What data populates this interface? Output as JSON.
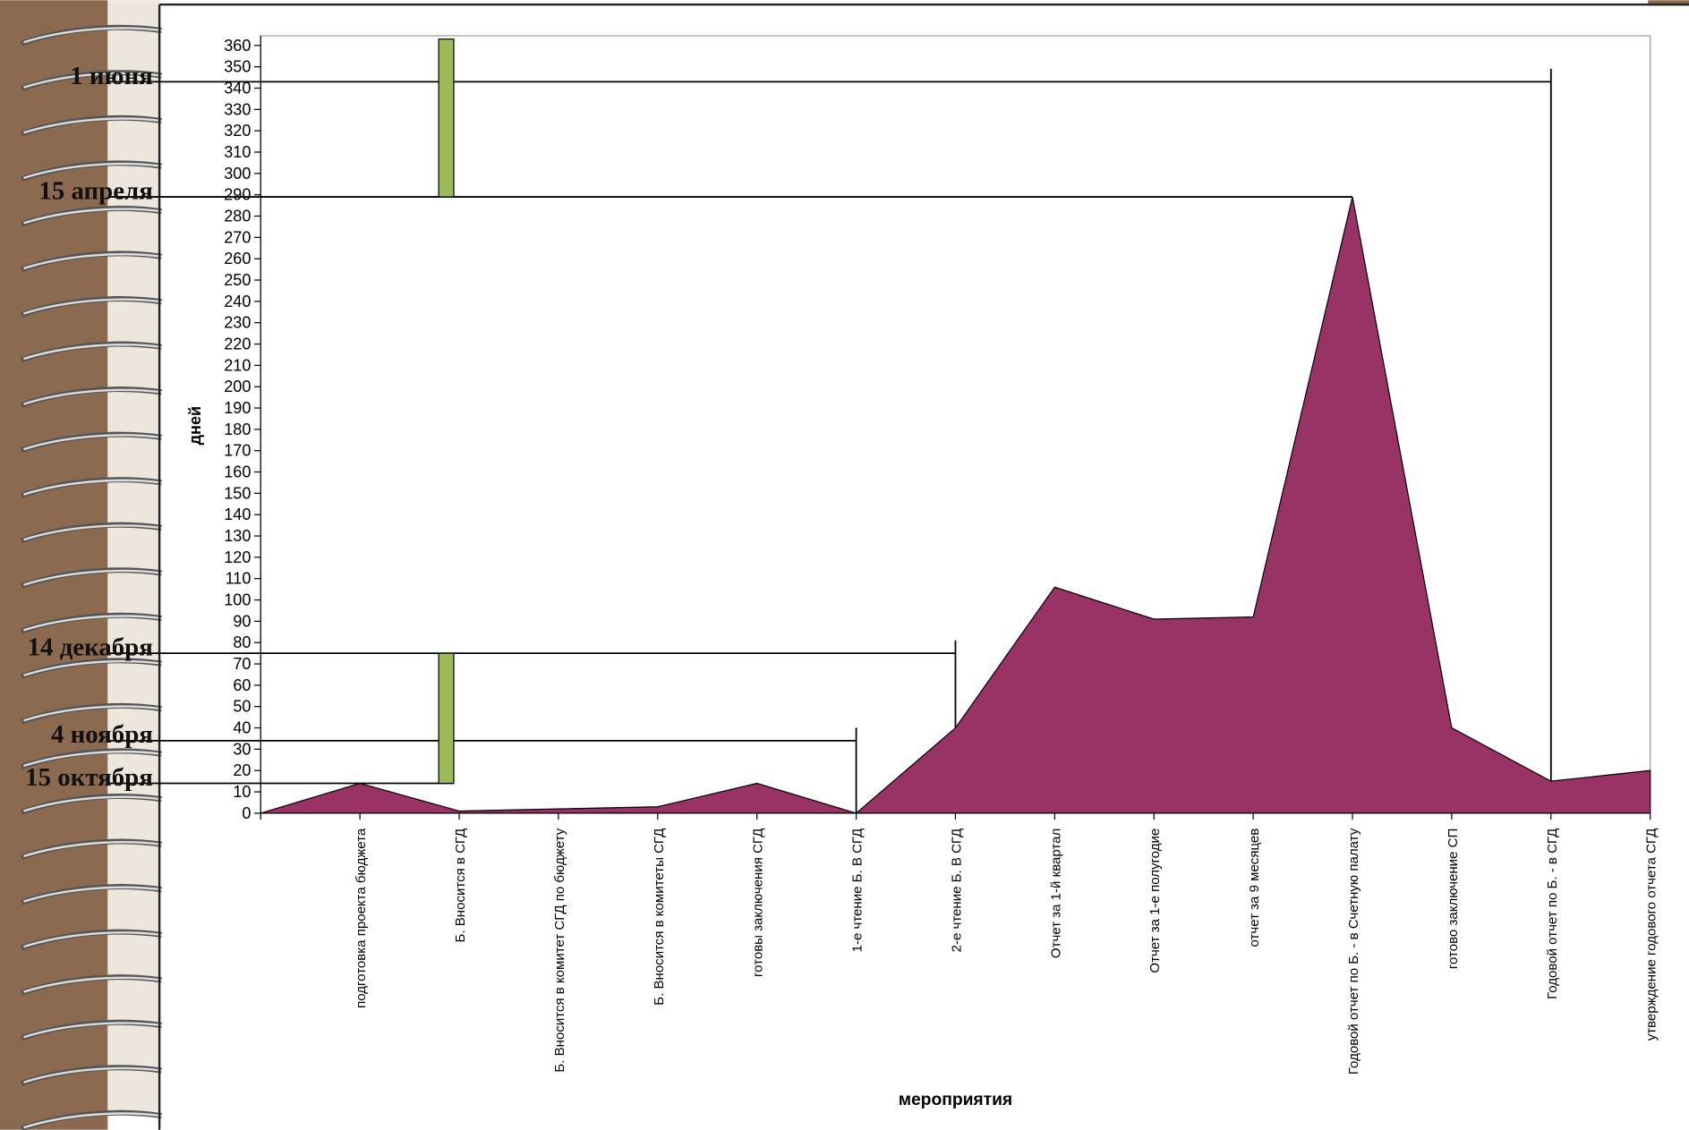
{
  "chart_data": {
    "type": "area",
    "ylabel": "дней",
    "xlabel": "мероприятия",
    "categories": [
      null,
      "подготовка проекта бюджета",
      "Б. Вносится в СГД",
      "Б. Вносится в комитет СГД по бюджету",
      "Б. Вносится в комитеты СГД",
      "готовы заключения СГД",
      "1-е чтение Б. В СГД",
      "2-е чтение Б. В СГД",
      "Отчет за 1-й квартал",
      "Отчет за 1-е полугодие",
      "отчет за 9 месяцев",
      "Годовой отчет по Б. - в Счетную палату",
      "готово заключение СП",
      "Годовой отчет по Б. - в СГД",
      "утверждение годового отчета СГД"
    ],
    "series": [
      {
        "color": "#993366",
        "values": [
          0,
          14,
          1,
          2,
          3,
          14,
          0,
          40,
          106,
          91,
          92,
          289,
          40,
          15,
          20
        ]
      }
    ],
    "intervals": {
      "color": "#9bbb59",
      "ranges": [
        [
          289,
          363
        ],
        [
          14,
          75
        ]
      ]
    },
    "annotations": [
      {
        "label": "1 июня",
        "value": 343
      },
      {
        "label": "15 апреля",
        "value": 289
      },
      {
        "label": "14 декабря",
        "value": 75
      },
      {
        "label": "4 ноября",
        "value": 34
      },
      {
        "label": "15 октября",
        "value": 14
      }
    ],
    "ylim": [
      0,
      360
    ],
    "yticks": [
      0,
      10,
      20,
      30,
      40,
      50,
      60,
      70,
      80,
      90,
      100,
      110,
      120,
      130,
      140,
      150,
      160,
      170,
      180,
      190,
      200,
      210,
      220,
      230,
      240,
      250,
      260,
      270,
      280,
      290,
      300,
      310,
      320,
      330,
      340,
      350,
      360
    ]
  }
}
